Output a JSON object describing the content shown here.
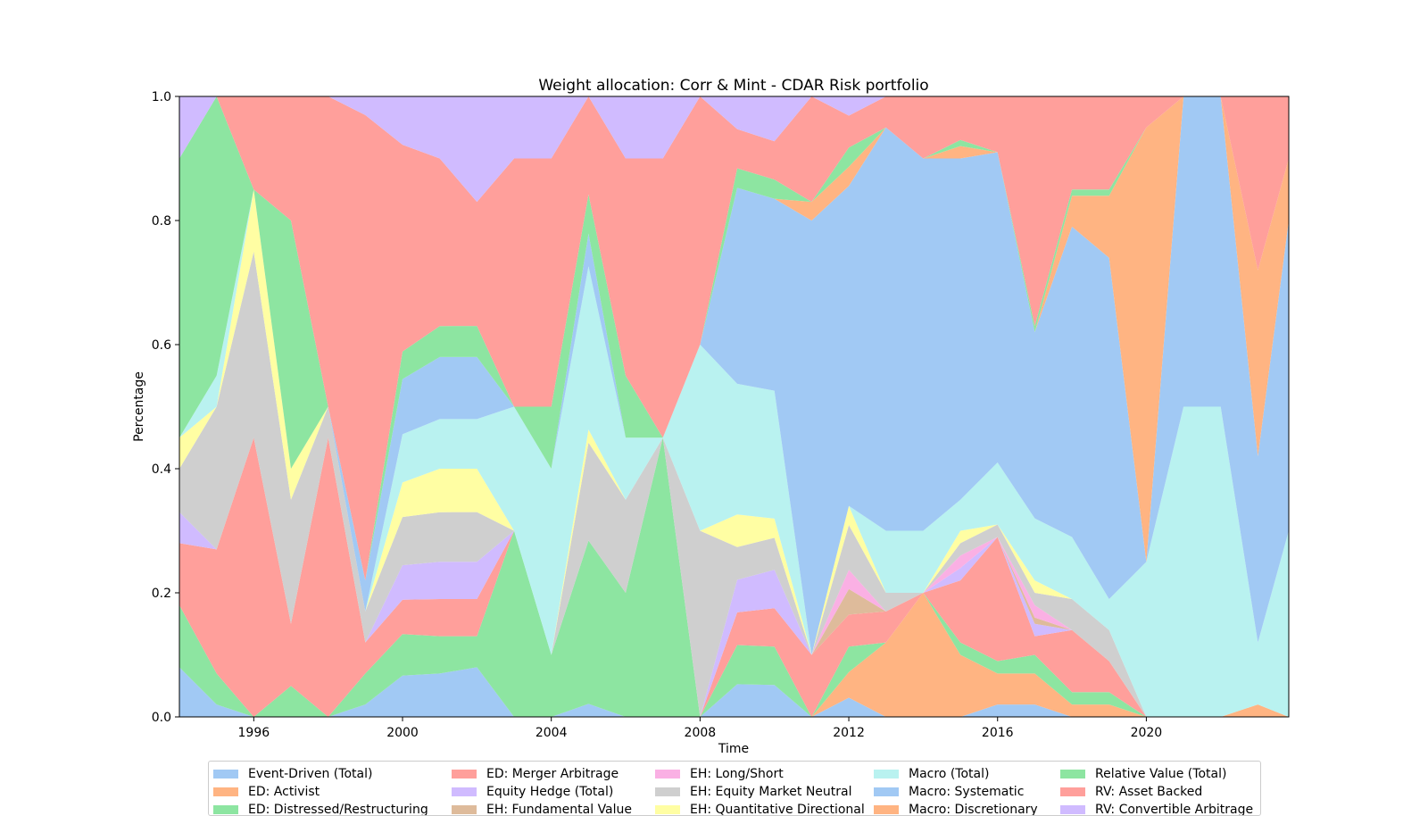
{
  "chart_data": {
    "type": "area",
    "stacked": true,
    "normalized": true,
    "title": "Weight allocation: Corr & Mint - CDAR Risk portfolio",
    "xlabel": "Time",
    "ylabel": "Percentage",
    "xlim": [
      1994.0,
      2023.83
    ],
    "ylim": [
      0.0,
      1.0
    ],
    "x_ticks": [
      1996,
      2000,
      2004,
      2008,
      2012,
      2016,
      2020
    ],
    "y_ticks": [
      "0.0",
      "0.2",
      "0.4",
      "0.6",
      "0.8",
      "1.0"
    ],
    "grid": false,
    "legend_position": "bottom",
    "x": [
      1994.0,
      1995.0,
      1996.0,
      1997.0,
      1998.0,
      1999.0,
      2000.0,
      2001.0,
      2002.0,
      2003.0,
      2004.0,
      2005.0,
      2006.0,
      2007.0,
      2008.0,
      2009.0,
      2010.0,
      2011.0,
      2012.0,
      2013.0,
      2014.0,
      2015.0,
      2016.0,
      2017.0,
      2018.0,
      2019.0,
      2020.0,
      2021.0,
      2022.0,
      2023.0,
      2023.83
    ],
    "series": [
      {
        "name": "Event-Driven (Total)",
        "color": "#a1c9f4",
        "values": [
          0.08,
          0.02,
          0.0,
          0.0,
          0.0,
          0.02,
          0.06,
          0.07,
          0.08,
          0.0,
          0.0,
          0.02,
          0.0,
          0.0,
          0.0,
          0.05,
          0.05,
          0.0,
          0.03,
          0.0,
          0.0,
          0.0,
          0.02,
          0.02,
          0.0,
          0.0,
          0.0,
          0.0,
          0.0,
          0.0,
          0.0
        ]
      },
      {
        "name": "ED: Activist",
        "color": "#ffb482",
        "values": [
          0.0,
          0.0,
          0.0,
          0.0,
          0.0,
          0.0,
          0.0,
          0.0,
          0.0,
          0.0,
          0.0,
          0.0,
          0.0,
          0.0,
          0.0,
          0.0,
          0.0,
          0.0,
          0.04,
          0.12,
          0.2,
          0.1,
          0.05,
          0.05,
          0.02,
          0.02,
          0.0,
          0.0,
          0.0,
          0.02,
          0.0
        ]
      },
      {
        "name": "ED: Distressed/Restructuring",
        "color": "#8de5a1",
        "values": [
          0.1,
          0.05,
          0.0,
          0.05,
          0.0,
          0.05,
          0.06,
          0.06,
          0.05,
          0.3,
          0.1,
          0.25,
          0.2,
          0.45,
          0.0,
          0.06,
          0.06,
          0.0,
          0.04,
          0.0,
          0.0,
          0.02,
          0.02,
          0.03,
          0.02,
          0.02,
          0.0,
          0.0,
          0.0,
          0.0,
          0.0
        ]
      },
      {
        "name": "ED: Merger Arbitrage",
        "color": "#ff9f9b",
        "values": [
          0.1,
          0.2,
          0.45,
          0.1,
          0.45,
          0.05,
          0.05,
          0.06,
          0.06,
          0.0,
          0.0,
          0.0,
          0.0,
          0.0,
          0.0,
          0.05,
          0.06,
          0.1,
          0.05,
          0.05,
          0.0,
          0.1,
          0.2,
          0.03,
          0.1,
          0.05,
          0.0,
          0.0,
          0.0,
          0.0,
          0.0
        ]
      },
      {
        "name": "Equity Hedge (Total)",
        "color": "#d0bbff",
        "values": [
          0.05,
          0.0,
          0.0,
          0.0,
          0.0,
          0.0,
          0.05,
          0.06,
          0.06,
          0.0,
          0.0,
          0.0,
          0.0,
          0.0,
          0.0,
          0.05,
          0.06,
          0.0,
          0.0,
          0.0,
          0.0,
          0.02,
          0.0,
          0.02,
          0.0,
          0.0,
          0.0,
          0.0,
          0.0,
          0.0,
          0.0
        ]
      },
      {
        "name": "EH: Fundamental Value",
        "color": "#debb9b",
        "values": [
          0.0,
          0.0,
          0.0,
          0.0,
          0.0,
          0.0,
          0.0,
          0.0,
          0.0,
          0.0,
          0.0,
          0.0,
          0.0,
          0.0,
          0.0,
          0.0,
          0.0,
          0.0,
          0.04,
          0.0,
          0.0,
          0.0,
          0.0,
          0.01,
          0.0,
          0.0,
          0.0,
          0.0,
          0.0,
          0.0,
          0.0
        ]
      },
      {
        "name": "EH: Long/Short",
        "color": "#fab0e4",
        "values": [
          0.0,
          0.0,
          0.0,
          0.0,
          0.0,
          0.0,
          0.0,
          0.0,
          0.0,
          0.0,
          0.0,
          0.0,
          0.0,
          0.0,
          0.0,
          0.0,
          0.0,
          0.0,
          0.03,
          0.0,
          0.0,
          0.02,
          0.0,
          0.02,
          0.0,
          0.0,
          0.0,
          0.0,
          0.0,
          0.0,
          0.0
        ]
      },
      {
        "name": "EH: Equity Market Neutral",
        "color": "#cfcfcf",
        "values": [
          0.07,
          0.23,
          0.3,
          0.2,
          0.05,
          0.05,
          0.07,
          0.08,
          0.08,
          0.0,
          0.0,
          0.15,
          0.15,
          0.0,
          0.3,
          0.05,
          0.05,
          0.0,
          0.07,
          0.03,
          0.0,
          0.02,
          0.02,
          0.02,
          0.05,
          0.05,
          0.0,
          0.0,
          0.0,
          0.0,
          0.0
        ]
      },
      {
        "name": "EH: Quantitative Directional",
        "color": "#fffea3",
        "values": [
          0.05,
          0.0,
          0.1,
          0.05,
          0.0,
          0.0,
          0.05,
          0.07,
          0.07,
          0.0,
          0.0,
          0.02,
          0.0,
          0.0,
          0.0,
          0.05,
          0.03,
          0.0,
          0.03,
          0.0,
          0.0,
          0.02,
          0.0,
          0.02,
          0.0,
          0.0,
          0.0,
          0.0,
          0.0,
          0.0,
          0.0
        ]
      },
      {
        "name": "Macro (Total)",
        "color": "#b9f2f0",
        "values": [
          0.0,
          0.05,
          0.0,
          0.0,
          0.0,
          0.0,
          0.07,
          0.08,
          0.08,
          0.2,
          0.3,
          0.25,
          0.1,
          0.0,
          0.3,
          0.2,
          0.2,
          0.0,
          0.0,
          0.1,
          0.1,
          0.05,
          0.1,
          0.1,
          0.1,
          0.05,
          0.25,
          0.5,
          0.5,
          0.1,
          0.3
        ]
      },
      {
        "name": "Macro: Systematic",
        "color": "#a1c9f4",
        "values": [
          0.0,
          0.0,
          0.0,
          0.0,
          0.0,
          0.05,
          0.08,
          0.1,
          0.1,
          0.0,
          0.0,
          0.05,
          0.0,
          0.0,
          0.0,
          0.3,
          0.3,
          0.7,
          0.5,
          0.65,
          0.6,
          0.55,
          0.5,
          0.3,
          0.5,
          0.55,
          0.0,
          0.5,
          0.5,
          0.3,
          0.5
        ]
      },
      {
        "name": "Macro: Discretionary",
        "color": "#ffb482",
        "values": [
          0.0,
          0.0,
          0.0,
          0.0,
          0.0,
          0.0,
          0.0,
          0.0,
          0.0,
          0.0,
          0.0,
          0.0,
          0.0,
          0.0,
          0.0,
          0.0,
          0.0,
          0.03,
          0.03,
          0.0,
          0.0,
          0.02,
          0.0,
          0.0,
          0.05,
          0.1,
          0.7,
          0.0,
          0.0,
          0.3,
          0.1
        ]
      },
      {
        "name": "Relative Value (Total)",
        "color": "#8de5a1",
        "values": [
          0.45,
          0.45,
          0.0,
          0.4,
          0.0,
          0.0,
          0.04,
          0.05,
          0.05,
          0.0,
          0.1,
          0.06,
          0.1,
          0.0,
          0.0,
          0.03,
          0.03,
          0.0,
          0.03,
          0.0,
          0.0,
          0.01,
          0.0,
          0.01,
          0.01,
          0.01,
          0.0,
          0.0,
          0.0,
          0.0,
          0.0
        ]
      },
      {
        "name": "RV: Asset Backed",
        "color": "#ff9f9b",
        "values": [
          0.0,
          0.0,
          0.15,
          0.2,
          0.5,
          0.75,
          0.3,
          0.27,
          0.2,
          0.4,
          0.4,
          0.15,
          0.35,
          0.45,
          0.4,
          0.06,
          0.06,
          0.17,
          0.05,
          0.05,
          0.1,
          0.07,
          0.09,
          0.37,
          0.15,
          0.15,
          0.05,
          0.0,
          0.0,
          0.28,
          0.1
        ]
      },
      {
        "name": "RV: Convertible Arbitrage",
        "color": "#d0bbff",
        "values": [
          0.1,
          0.0,
          0.0,
          0.0,
          0.0,
          0.03,
          0.07,
          0.1,
          0.17,
          0.1,
          0.1,
          0.0,
          0.1,
          0.1,
          0.0,
          0.05,
          0.07,
          0.0,
          0.03,
          0.0,
          0.0,
          0.0,
          0.0,
          0.0,
          0.0,
          0.0,
          0.0,
          0.0,
          0.0,
          0.0,
          0.0
        ]
      }
    ]
  },
  "legend_visible_labels": [
    "Event-Driven (Total)",
    "ED: Activist",
    "ED: Distressed/Restructuring",
    "ED: Merger Arbitrage",
    "Equity Hedge (Total)",
    "EH: Fundamental Value",
    "EH: Long/Short",
    "EH: Equity Market Neutral",
    "EH: Quantitative Directional",
    "Macro (Total)",
    "Macro: Systematic",
    "Macro: Discretionary",
    "Relative Value (Total)",
    "RV: Asset Backed",
    "RV: Convertible Arbitrage"
  ]
}
